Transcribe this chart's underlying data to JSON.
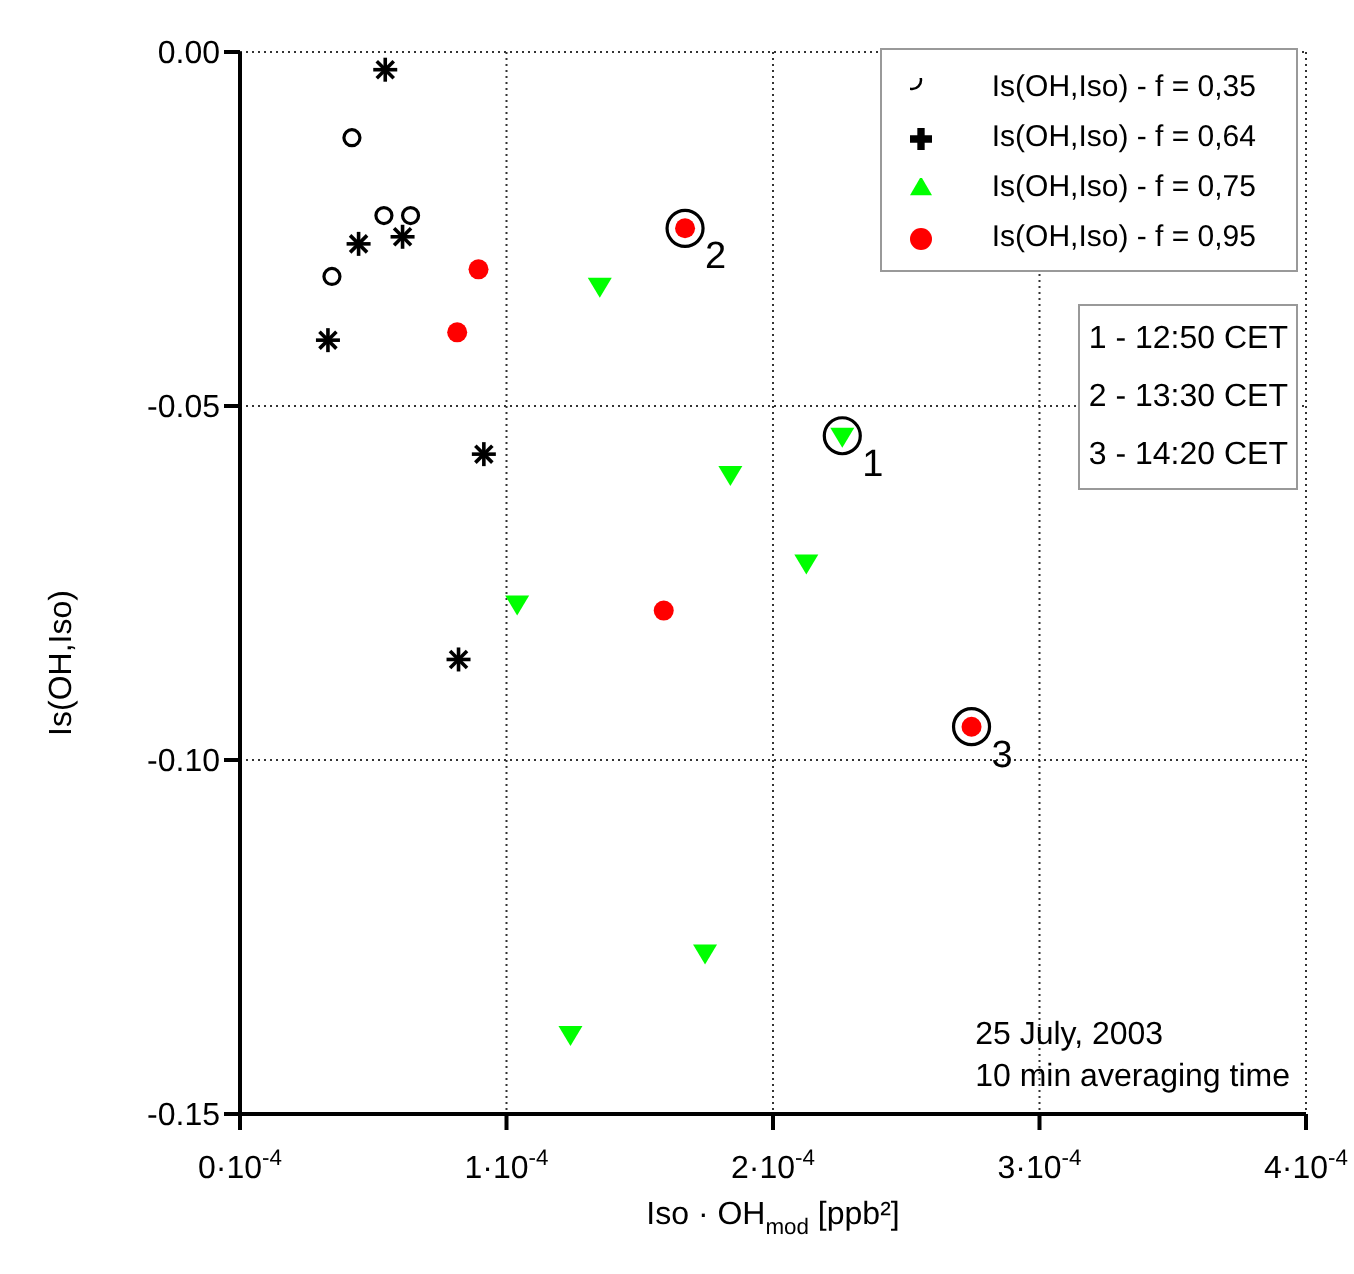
{
  "chart_data": {
    "type": "scatter",
    "xlabel": "Iso · OH$_{mod}$  [ppb²]",
    "ylabel": "Is(OH,Iso)",
    "xlim": [
      0,
      0.0004
    ],
    "ylim": [
      -0.15,
      0
    ],
    "xticks": [
      {
        "value": 0,
        "label": "0·10$^{-4}$"
      },
      {
        "value": 0.0001,
        "label": "1·10$^{-4}$"
      },
      {
        "value": 0.0002,
        "label": "2·10$^{-4}$"
      },
      {
        "value": 0.0003,
        "label": "3·10$^{-4}$"
      },
      {
        "value": 0.0004,
        "label": "4·10$^{-4}$"
      }
    ],
    "yticks": [
      {
        "value": 0,
        "label": "0.00"
      },
      -0.05,
      {
        "value": -0.1,
        "label": "-0.10"
      },
      -0.15
    ],
    "grid": true,
    "legend": "top right",
    "series": [
      {
        "name": "Is(OH,Iso)  - f = 0,35",
        "color": "#000000",
        "marker": "circle",
        "x": [
          4.2e-05,
          5.4e-05,
          6.4e-05,
          3.45e-05
        ],
        "values": [
          -0.0121,
          -0.0231,
          -0.0231,
          -0.0317
        ]
      },
      {
        "name": "Is(OH,Iso)  - f = 0,64",
        "color": "#000000",
        "marker": "cross",
        "x": [
          5.45e-05,
          4.45e-05,
          6.1e-05,
          3.3e-05,
          9.15e-05,
          8.2e-05
        ],
        "values": [
          -0.0025,
          -0.0271,
          -0.0261,
          -0.0407,
          -0.0568,
          -0.0858
        ]
      },
      {
        "name": "Is(OH,Iso)  - f = 0,75",
        "color": "#00ff00",
        "marker": "triangle",
        "x": [
          0.000135,
          0.000226,
          0.000184,
          0.0002125,
          0.000104,
          0.0001745,
          0.000124
        ],
        "values": [
          -0.033,
          -0.0542,
          -0.0596,
          -0.0721,
          -0.0779,
          -0.1272,
          -0.1387
        ]
      },
      {
        "name": "Is(OH,Iso)  - f = 0,95",
        "color": "#ff0000",
        "marker": "circle",
        "x": [
          8.95e-05,
          8.15e-05,
          0.000167,
          0.000159,
          0.0002745
        ],
        "values": [
          -0.0307,
          -0.0396,
          -0.0249,
          -0.0789,
          -0.0953
        ]
      }
    ],
    "annotations": [
      {
        "text": "1",
        "x": 0.000226,
        "y": -0.0542
      },
      {
        "text": "2",
        "x": 0.000167,
        "y": -0.0249
      },
      {
        "text": "3",
        "x": 0.0002745,
        "y": -0.0953
      },
      "1 - 12:50 CET",
      "2 - 13:30 CET",
      "3 - 14:20 CET",
      "25 July, 2003",
      "10 min averaging time"
    ]
  }
}
